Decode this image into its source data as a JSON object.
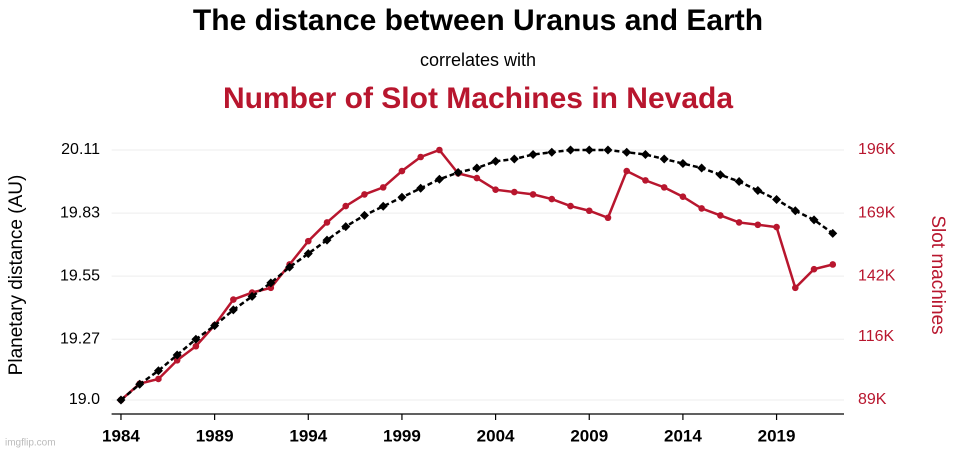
{
  "chart_data": {
    "type": "line",
    "subtitle": "correlates with",
    "x": [
      1984,
      1985,
      1986,
      1987,
      1988,
      1989,
      1990,
      1991,
      1992,
      1993,
      1994,
      1995,
      1996,
      1997,
      1998,
      1999,
      2000,
      2001,
      2002,
      2003,
      2004,
      2005,
      2006,
      2007,
      2008,
      2009,
      2010,
      2011,
      2012,
      2013,
      2014,
      2015,
      2016,
      2017,
      2018,
      2019,
      2020,
      2021,
      2022
    ],
    "series": [
      {
        "name": "The distance between Uranus and Earth",
        "color": "#000000",
        "axis": "y",
        "dashed": true,
        "marker": "diamond",
        "values": [
          19.0,
          19.07,
          19.13,
          19.2,
          19.27,
          19.33,
          19.4,
          19.46,
          19.52,
          19.59,
          19.65,
          19.71,
          19.77,
          19.82,
          19.86,
          19.9,
          19.94,
          19.98,
          20.01,
          20.03,
          20.06,
          20.07,
          20.09,
          20.1,
          20.11,
          20.11,
          20.11,
          20.1,
          20.09,
          20.07,
          20.05,
          20.03,
          20.0,
          19.97,
          19.93,
          19.89,
          19.84,
          19.8,
          19.74
        ]
      },
      {
        "name": "Number of Slot Machines in Nevada",
        "color": "#b8162e",
        "axis": "y2",
        "dashed": false,
        "marker": "circle",
        "values": [
          89,
          96,
          98,
          106,
          112,
          121,
          132,
          135,
          137,
          147,
          157,
          165,
          172,
          177,
          180,
          187,
          193,
          196,
          186,
          184,
          179,
          178,
          177,
          175,
          172,
          170,
          167,
          187,
          183,
          180,
          176,
          171,
          168,
          165,
          164,
          163,
          137,
          145,
          147
        ]
      }
    ],
    "xlim": [
      1983.5,
      2022.6
    ],
    "xticks": [
      1984,
      1989,
      1994,
      1999,
      2004,
      2009,
      2014,
      2019
    ],
    "ylabel": "Planetary distance (AU)",
    "ylim": [
      19.0,
      20.11
    ],
    "yticks": [
      {
        "value": 19.0,
        "label": "19.0"
      },
      19.27,
      19.55,
      19.83,
      20.11
    ],
    "y2label": "Slot machines",
    "y2lim": [
      89,
      196
    ],
    "y2ticks": [
      {
        "value": 89,
        "label": "89K"
      },
      {
        "value": 116,
        "label": "116K"
      },
      {
        "value": 142,
        "label": "142K"
      },
      {
        "value": 169,
        "label": "169K"
      },
      {
        "value": 196,
        "label": "196K"
      }
    ],
    "grid": true,
    "watermark": "imgflip.com"
  }
}
